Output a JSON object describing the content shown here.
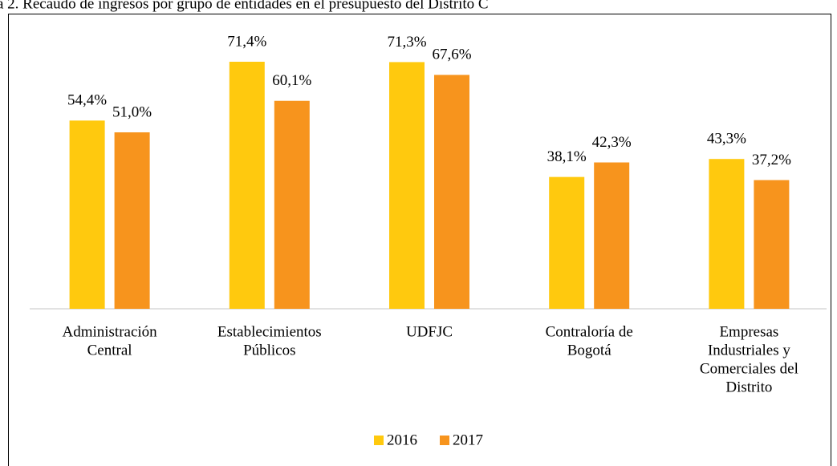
{
  "chart_data": {
    "type": "bar",
    "title": "a 2. Recaudo de ingresos por grupo de entidades en el presupuesto del Distrito C",
    "categories": [
      [
        "Administración",
        "Central"
      ],
      [
        "Establecimientos",
        "Públicos"
      ],
      [
        "UDFJC"
      ],
      [
        "Contraloría de",
        "Bogotá"
      ],
      [
        "Empresas",
        "Industriales y",
        "Comerciales del",
        "Distrito"
      ]
    ],
    "series": [
      {
        "name": "2016",
        "color": "#ffc90e",
        "values": [
          54.4,
          71.4,
          71.3,
          38.1,
          43.3
        ],
        "value_labels": [
          "54,4%",
          "71,4%",
          "71,3%",
          "38,1%",
          "43,3%"
        ]
      },
      {
        "name": "2017",
        "color": "#f7941d",
        "values": [
          51.0,
          60.1,
          67.6,
          42.3,
          37.2
        ],
        "value_labels": [
          "51,0%",
          "60,1%",
          "67,6%",
          "42,3%",
          "37,2%"
        ]
      }
    ],
    "legend": "bottom"
  }
}
